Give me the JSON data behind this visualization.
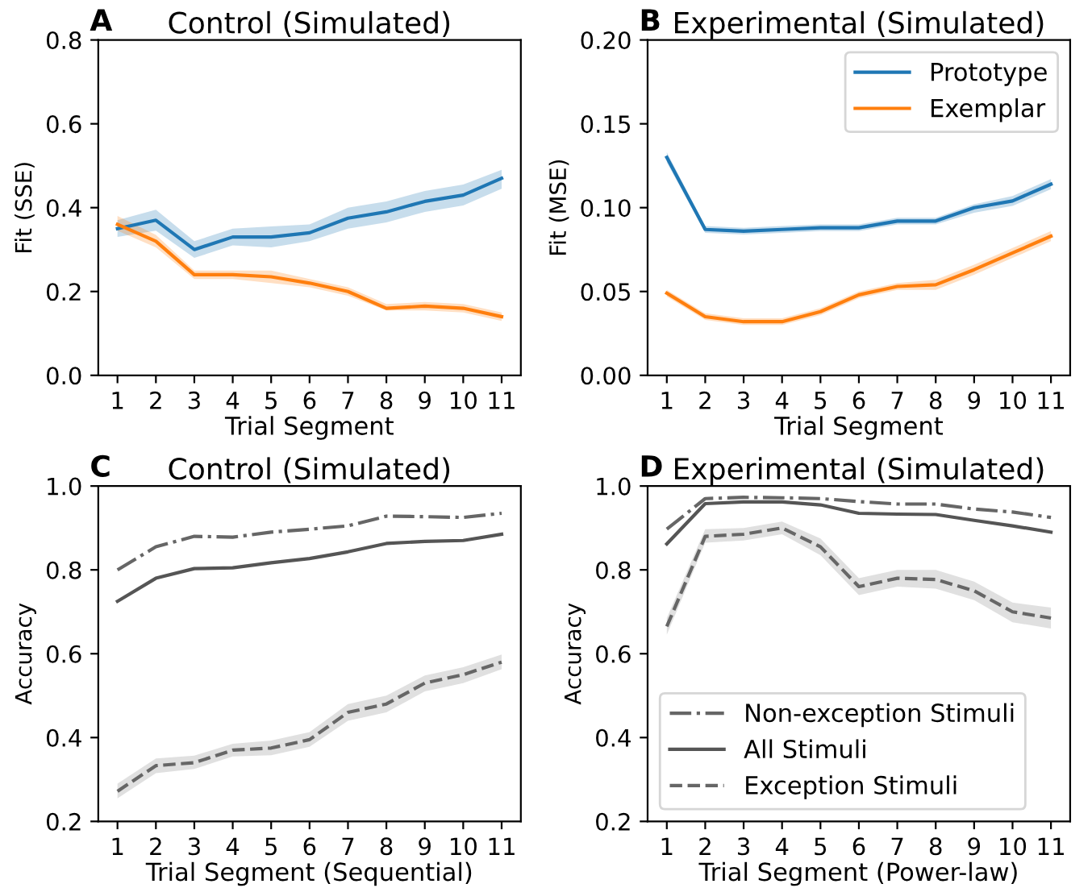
{
  "chart_data": [
    {
      "type": "line",
      "title": "Control (Simulated)",
      "annotations": [
        "A"
      ],
      "xlabel": "Trial Segment",
      "ylabel": "Fit (SSE)",
      "x": [
        1,
        2,
        3,
        4,
        5,
        6,
        7,
        8,
        9,
        10,
        11
      ],
      "xlim": [
        0.5,
        11.5
      ],
      "xticks": [
        1,
        2,
        3,
        4,
        5,
        6,
        7,
        8,
        9,
        10,
        11
      ],
      "ylim": [
        0.0,
        0.8
      ],
      "yticks": [
        {
          "value": 0,
          "label": "0.0"
        },
        0.2,
        0.4,
        0.6,
        0.8
      ],
      "grid": false,
      "legend": false,
      "series": [
        {
          "color": "#1f77b4",
          "line_style": "solid",
          "values": [
            0.35,
            0.37,
            0.3,
            0.33,
            0.33,
            0.34,
            0.375,
            0.39,
            0.415,
            0.43,
            0.47
          ],
          "lower": [
            0.33,
            0.345,
            0.28,
            0.31,
            0.305,
            0.32,
            0.35,
            0.365,
            0.39,
            0.405,
            0.445
          ],
          "upper": [
            0.37,
            0.395,
            0.32,
            0.35,
            0.355,
            0.36,
            0.4,
            0.415,
            0.44,
            0.455,
            0.49
          ]
        },
        {
          "color": "#ff7f0e",
          "line_style": "solid",
          "values": [
            0.36,
            0.32,
            0.24,
            0.24,
            0.235,
            0.22,
            0.2,
            0.16,
            0.165,
            0.16,
            0.14
          ],
          "lower": [
            0.345,
            0.305,
            0.23,
            0.23,
            0.22,
            0.21,
            0.19,
            0.155,
            0.155,
            0.15,
            0.13
          ],
          "upper": [
            0.38,
            0.335,
            0.25,
            0.25,
            0.25,
            0.23,
            0.21,
            0.17,
            0.175,
            0.17,
            0.15
          ]
        }
      ]
    },
    {
      "type": "line",
      "title": "Experimental (Simulated)",
      "annotations": [
        "B"
      ],
      "xlabel": "Trial Segment",
      "ylabel": "Fit (MSE)",
      "x": [
        1,
        2,
        3,
        4,
        5,
        6,
        7,
        8,
        9,
        10,
        11
      ],
      "xlim": [
        0.5,
        11.5
      ],
      "xticks": [
        1,
        2,
        3,
        4,
        5,
        6,
        7,
        8,
        9,
        10,
        11
      ],
      "ylim": [
        0.0,
        0.2
      ],
      "yticks": [
        {
          "value": 0,
          "label": "0.00"
        },
        0.05,
        {
          "value": 0.1,
          "label": "0.10"
        },
        0.15,
        {
          "value": 0.2,
          "label": "0.20"
        }
      ],
      "grid": false,
      "legend": "top right",
      "series": [
        {
          "name": "Prototype",
          "color": "#1f77b4",
          "line_style": "solid",
          "values": [
            0.13,
            0.087,
            0.086,
            0.087,
            0.088,
            0.088,
            0.092,
            0.092,
            0.1,
            0.104,
            0.114
          ],
          "lower": [
            0.127,
            0.085,
            0.084,
            0.085,
            0.086,
            0.086,
            0.09,
            0.09,
            0.097,
            0.101,
            0.111
          ],
          "upper": [
            0.133,
            0.089,
            0.088,
            0.089,
            0.09,
            0.09,
            0.094,
            0.094,
            0.102,
            0.107,
            0.117
          ]
        },
        {
          "name": "Exemplar",
          "color": "#ff7f0e",
          "line_style": "solid",
          "values": [
            0.049,
            0.035,
            0.032,
            0.032,
            0.038,
            0.048,
            0.053,
            0.054,
            0.063,
            0.073,
            0.083
          ],
          "lower": [
            0.047,
            0.033,
            0.03,
            0.03,
            0.036,
            0.046,
            0.051,
            0.051,
            0.06,
            0.07,
            0.08
          ],
          "upper": [
            0.051,
            0.037,
            0.034,
            0.034,
            0.04,
            0.05,
            0.055,
            0.057,
            0.066,
            0.076,
            0.086
          ]
        }
      ]
    },
    {
      "type": "line",
      "title": "Control (Simulated)",
      "annotations": [
        "C"
      ],
      "xlabel": "Trial Segment (Sequential)",
      "ylabel": "Accuracy",
      "x": [
        1,
        2,
        3,
        4,
        5,
        6,
        7,
        8,
        9,
        10,
        11
      ],
      "xlim": [
        0.5,
        11.5
      ],
      "xticks": [
        1,
        2,
        3,
        4,
        5,
        6,
        7,
        8,
        9,
        10,
        11
      ],
      "ylim": [
        0.2,
        1.0
      ],
      "yticks": [
        0.2,
        0.4,
        0.6,
        0.8,
        {
          "value": 1,
          "label": "1.0"
        }
      ],
      "grid": false,
      "legend": false,
      "series": [
        {
          "color": "#666666",
          "line_style": "dashdot",
          "values": [
            0.8,
            0.855,
            0.88,
            0.878,
            0.89,
            0.897,
            0.905,
            0.928,
            0.927,
            0.925,
            0.935
          ]
        },
        {
          "color": "#555555",
          "line_style": "solid",
          "values": [
            0.725,
            0.78,
            0.803,
            0.805,
            0.817,
            0.827,
            0.843,
            0.863,
            0.868,
            0.87,
            0.885
          ]
        },
        {
          "color": "#666666",
          "line_style": "dashed",
          "values": [
            0.272,
            0.333,
            0.34,
            0.37,
            0.375,
            0.395,
            0.46,
            0.48,
            0.53,
            0.55,
            0.58
          ],
          "lower": [
            0.255,
            0.315,
            0.325,
            0.355,
            0.358,
            0.378,
            0.44,
            0.46,
            0.51,
            0.53,
            0.563
          ],
          "upper": [
            0.29,
            0.35,
            0.357,
            0.385,
            0.393,
            0.413,
            0.48,
            0.5,
            0.548,
            0.568,
            0.598
          ]
        }
      ]
    },
    {
      "type": "line",
      "title": "Experimental (Simulated)",
      "annotations": [
        "D"
      ],
      "xlabel": "Trial Segment (Power-law)",
      "ylabel": "Accuracy",
      "x": [
        1,
        2,
        3,
        4,
        5,
        6,
        7,
        8,
        9,
        10,
        11
      ],
      "xlim": [
        0.5,
        11.5
      ],
      "xticks": [
        1,
        2,
        3,
        4,
        5,
        6,
        7,
        8,
        9,
        10,
        11
      ],
      "ylim": [
        0.2,
        1.0
      ],
      "yticks": [
        0.2,
        0.4,
        0.6,
        0.8,
        {
          "value": 1,
          "label": "1.0"
        }
      ],
      "grid": false,
      "legend": "bottom left",
      "series": [
        {
          "name": "Non-exception Stimuli",
          "color": "#666666",
          "line_style": "dashdot",
          "values": [
            0.897,
            0.97,
            0.973,
            0.972,
            0.97,
            0.963,
            0.957,
            0.957,
            0.945,
            0.938,
            0.925
          ]
        },
        {
          "name": "All Stimuli",
          "color": "#555555",
          "line_style": "solid",
          "values": [
            0.862,
            0.958,
            0.962,
            0.962,
            0.955,
            0.935,
            0.933,
            0.932,
            0.918,
            0.905,
            0.89
          ]
        },
        {
          "name": "Exception Stimuli",
          "color": "#666666",
          "line_style": "dashed",
          "values": [
            0.665,
            0.88,
            0.885,
            0.9,
            0.855,
            0.76,
            0.78,
            0.777,
            0.75,
            0.7,
            0.685
          ],
          "lower": [
            0.645,
            0.865,
            0.87,
            0.885,
            0.835,
            0.74,
            0.76,
            0.755,
            0.728,
            0.675,
            0.66
          ],
          "upper": [
            0.685,
            0.897,
            0.9,
            0.915,
            0.875,
            0.78,
            0.8,
            0.8,
            0.772,
            0.722,
            0.71
          ]
        }
      ]
    }
  ]
}
